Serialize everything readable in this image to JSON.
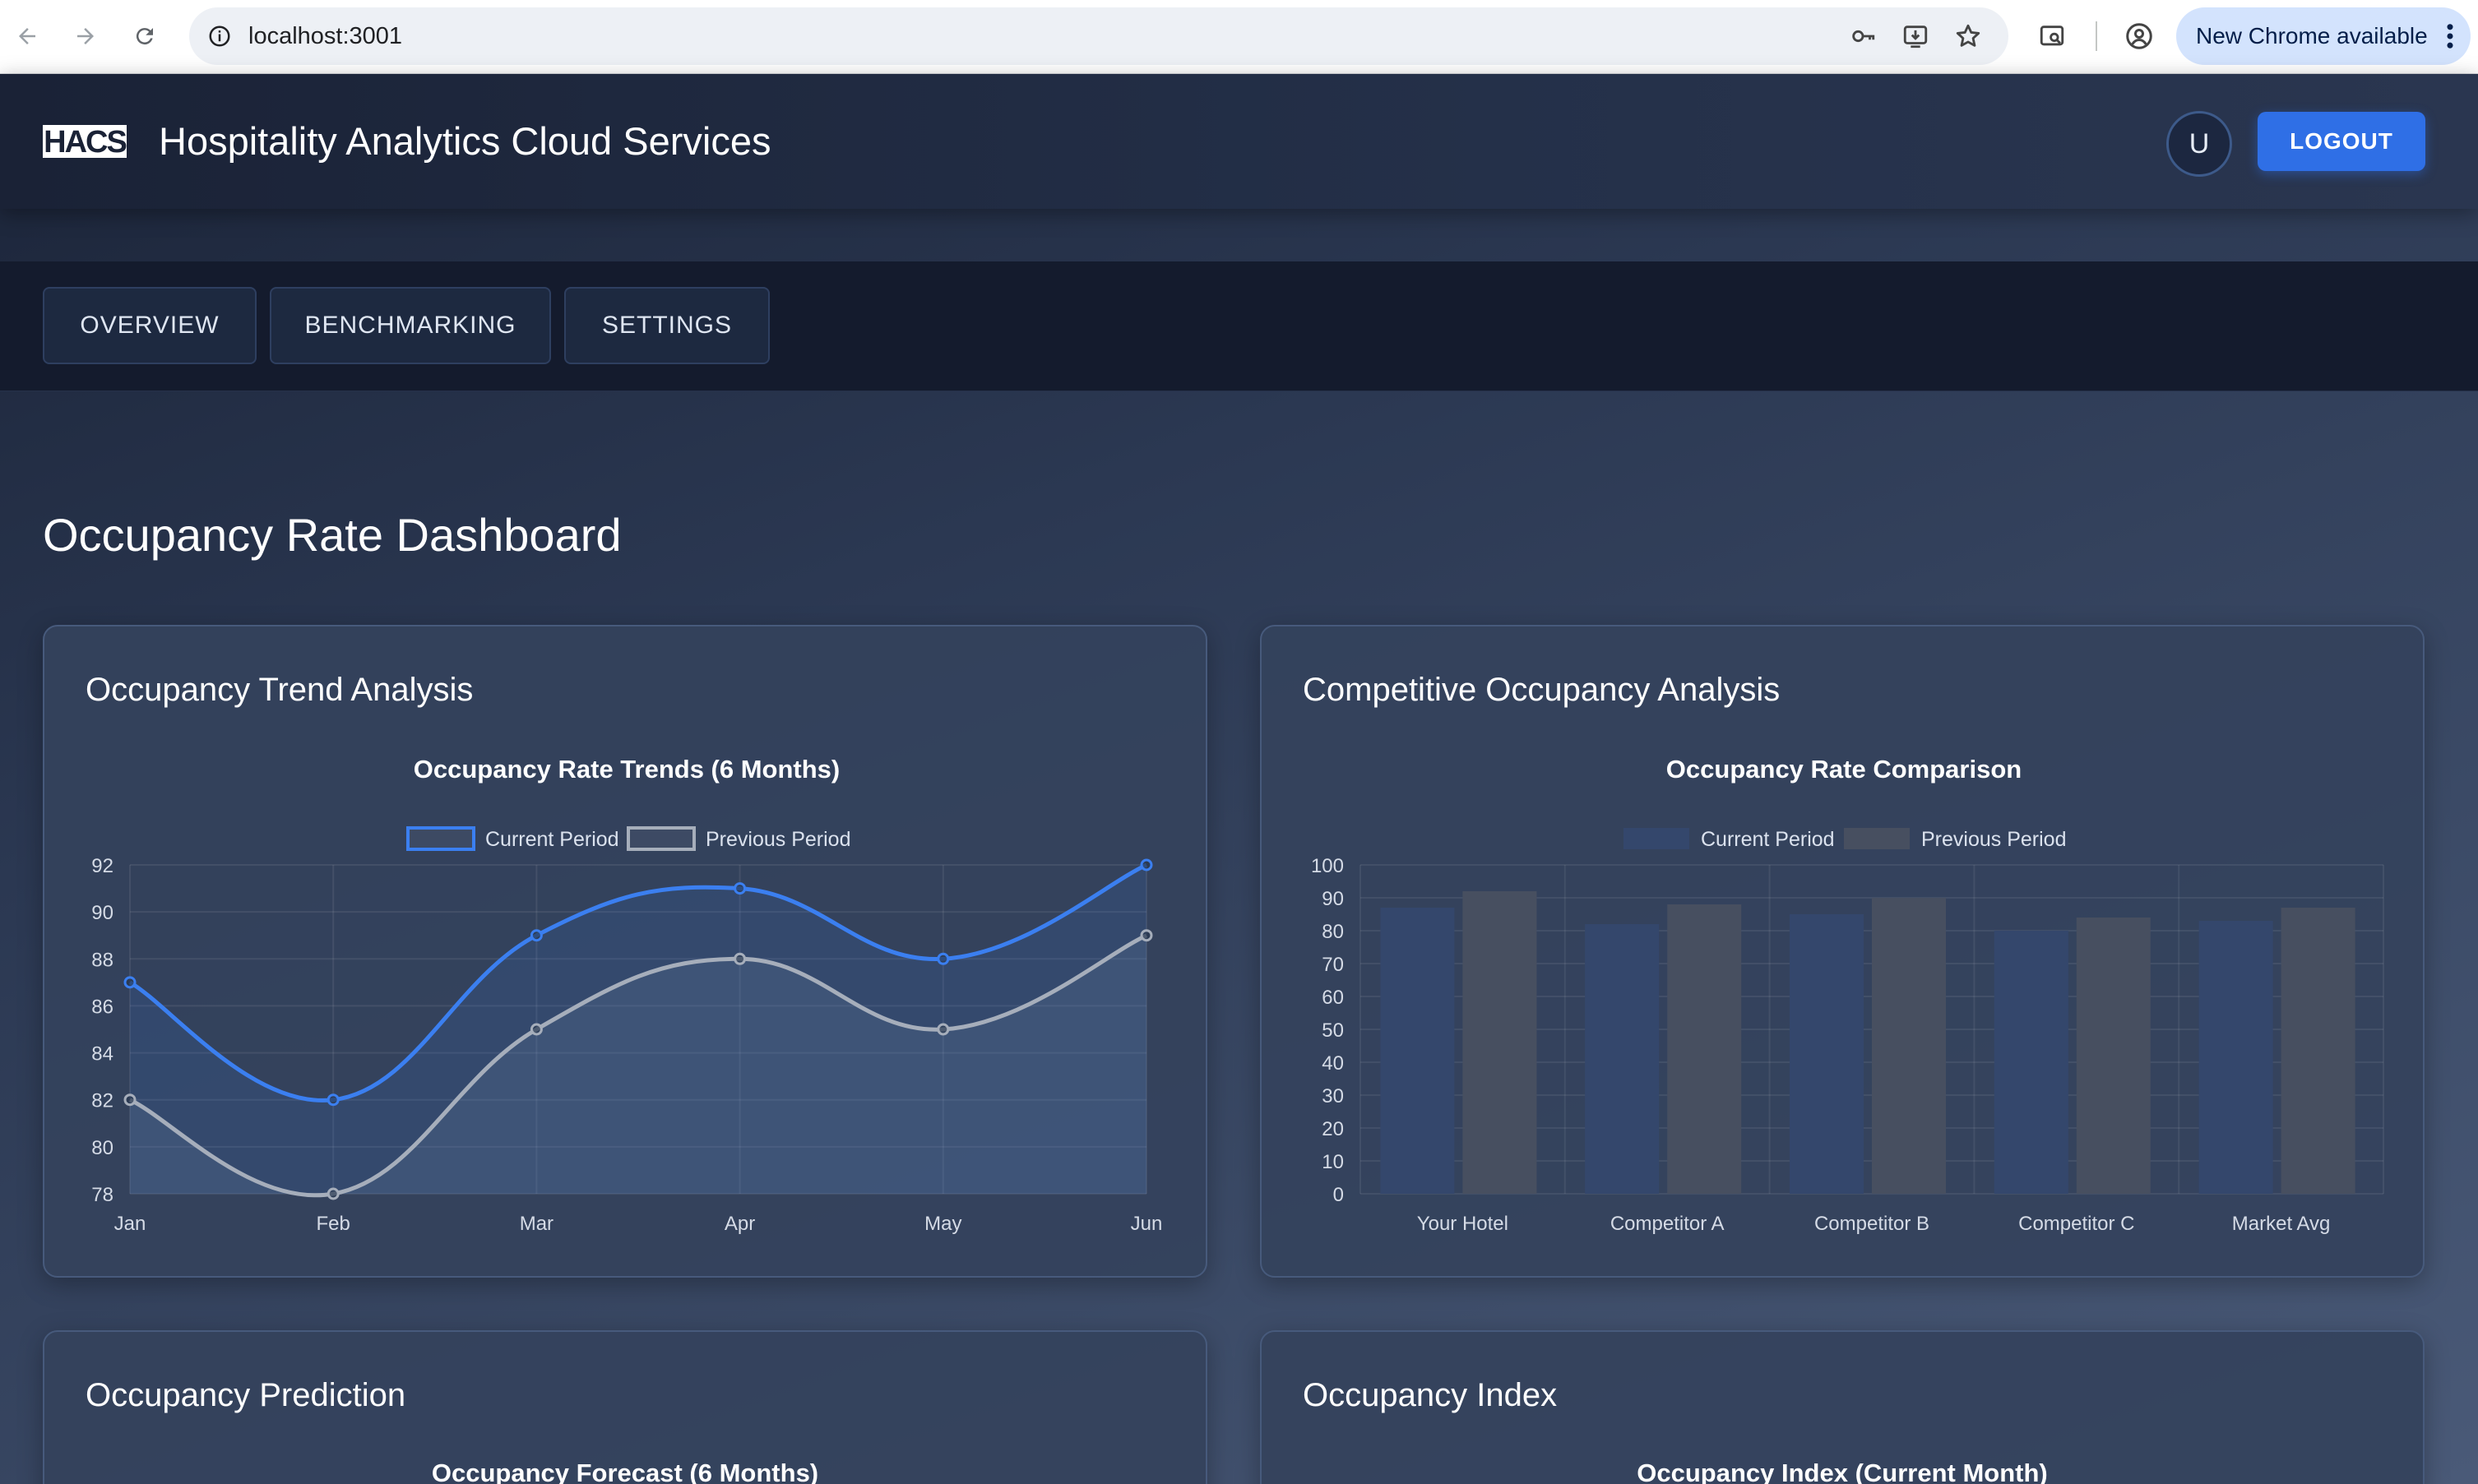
{
  "browser": {
    "url": "localhost:3001",
    "update_label": "New Chrome available"
  },
  "header": {
    "logo_text": "HACS",
    "title": "Hospitality Analytics Cloud Services",
    "avatar_initial": "U",
    "logout_label": "LOGOUT"
  },
  "tabs": [
    {
      "label": "OVERVIEW"
    },
    {
      "label": "BENCHMARKING"
    },
    {
      "label": "SETTINGS"
    }
  ],
  "page": {
    "title": "Occupancy Rate Dashboard"
  },
  "cards": {
    "trend": {
      "title": "Occupancy Trend Analysis"
    },
    "competitive": {
      "title": "Competitive Occupancy Analysis"
    },
    "prediction": {
      "title": "Occupancy Prediction",
      "chart_title": "Occupancy Forecast (6 Months)"
    },
    "index": {
      "title": "Occupancy Index",
      "chart_title": "Occupancy Index (Current Month)"
    }
  },
  "colors": {
    "current_line": "#3b7ff0",
    "previous_line": "#a6aebb",
    "current_bar": "#34476c",
    "previous_bar": "#474f60",
    "accent": "#2f6fe6"
  },
  "icons": {
    "back": "back-arrow-icon",
    "forward": "forward-arrow-icon",
    "reload": "reload-icon",
    "info": "site-info-icon",
    "password": "key-icon",
    "install": "install-app-icon",
    "bookmark": "star-icon",
    "tab_search": "tab-search-icon",
    "profile": "profile-icon",
    "menu": "more-vert-icon"
  },
  "chart_data": [
    {
      "type": "line",
      "title": "Occupancy Rate Trends (6 Months)",
      "categories": [
        "Jan",
        "Feb",
        "Mar",
        "Apr",
        "May",
        "Jun"
      ],
      "series": [
        {
          "name": "Current Period",
          "values": [
            87,
            82,
            89,
            91,
            88,
            92
          ]
        },
        {
          "name": "Previous Period",
          "values": [
            82,
            78,
            85,
            88,
            85,
            89
          ]
        }
      ],
      "ylim": [
        78,
        92
      ],
      "yticks": [
        78,
        80,
        82,
        84,
        86,
        88,
        90,
        92
      ],
      "grid": true,
      "legend": "top-center",
      "fill": true
    },
    {
      "type": "bar",
      "title": "Occupancy Rate Comparison",
      "categories": [
        "Your Hotel",
        "Competitor A",
        "Competitor B",
        "Competitor C",
        "Market Avg"
      ],
      "series": [
        {
          "name": "Current Period",
          "values": [
            87,
            82,
            85,
            80,
            83
          ]
        },
        {
          "name": "Previous Period",
          "values": [
            92,
            88,
            90,
            84,
            87
          ]
        }
      ],
      "ylim": [
        0,
        100
      ],
      "yticks": [
        0,
        10,
        20,
        30,
        40,
        50,
        60,
        70,
        80,
        90,
        100
      ],
      "grid": true,
      "legend": "top-center"
    }
  ]
}
